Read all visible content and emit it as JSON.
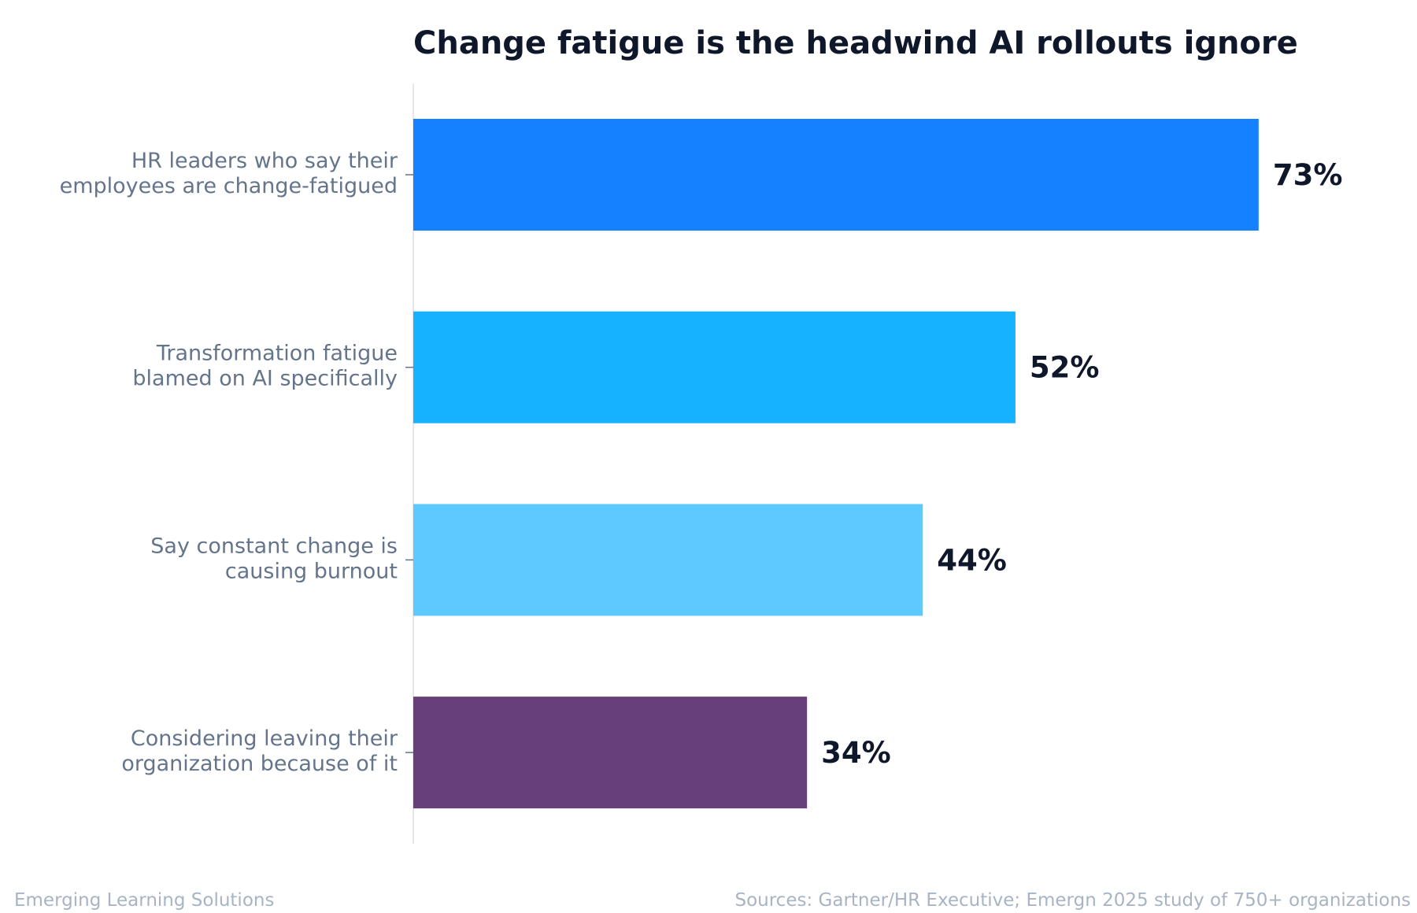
{
  "chart_data": {
    "type": "bar",
    "orientation": "horizontal",
    "title": "Change fatigue is the headwind AI rollouts ignore",
    "categories": [
      [
        "HR leaders who say their",
        "employees are change-fatigued"
      ],
      [
        "Transformation fatigue",
        "blamed on AI specifically"
      ],
      [
        "Say constant change is",
        "causing burnout"
      ],
      [
        "Considering leaving their",
        "organization because of it"
      ]
    ],
    "values": [
      73,
      52,
      44,
      34
    ],
    "value_labels": [
      "73%",
      "52%",
      "44%",
      "34%"
    ],
    "colors": [
      "#1681ff",
      "#17b2ff",
      "#5ccaff",
      "#673f79"
    ],
    "xlim": [
      0,
      80
    ],
    "grid": false,
    "legend": "none"
  },
  "footer": {
    "brand": "Emerging Learning Solutions",
    "source": "Sources: Gartner/HR Executive; Emergn 2025 study of 750+ organizations"
  }
}
